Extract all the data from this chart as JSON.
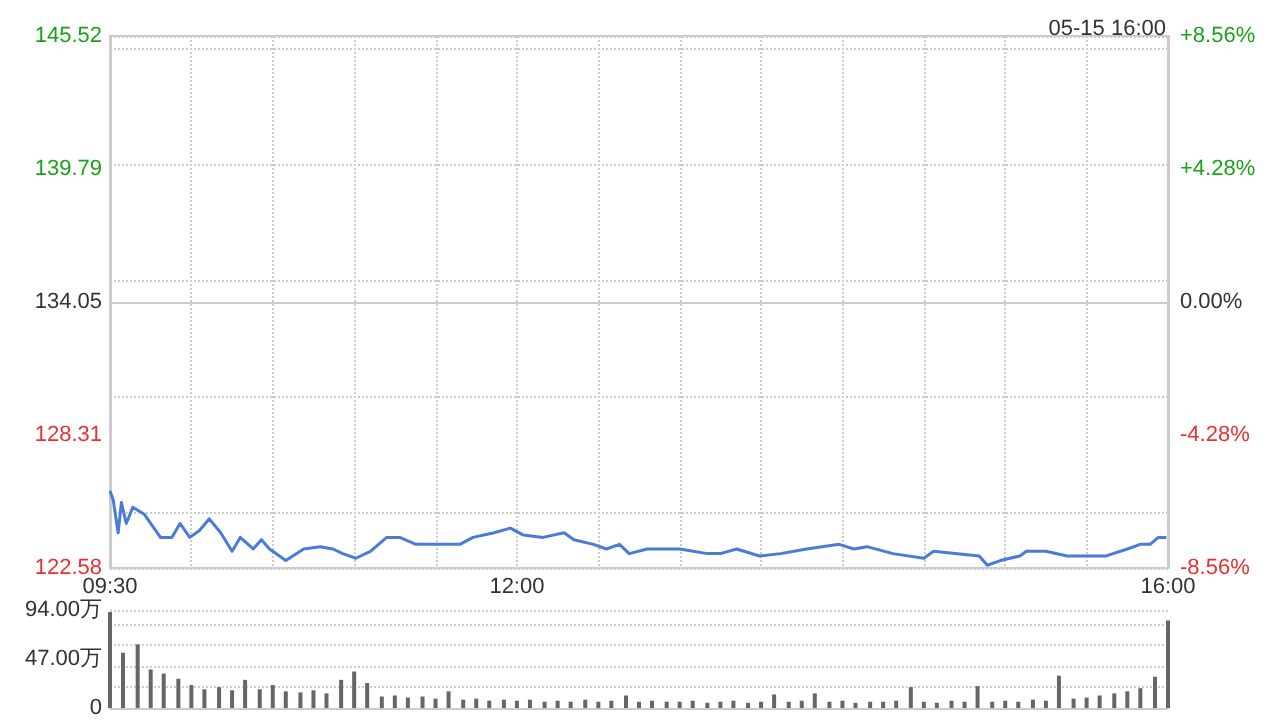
{
  "chart_data": [
    {
      "type": "line",
      "subtitle": "05-15 16:00",
      "x": [
        9.5,
        9.52,
        9.55,
        9.57,
        9.6,
        9.64,
        9.71,
        9.81,
        9.88,
        9.93,
        9.99,
        10.05,
        10.11,
        10.18,
        10.25,
        10.3,
        10.38,
        10.43,
        10.48,
        10.58,
        10.69,
        10.79,
        10.87,
        10.93,
        11.01,
        11.1,
        11.2,
        11.28,
        11.38,
        11.51,
        11.65,
        11.73,
        11.86,
        11.96,
        12.04,
        12.16,
        12.29,
        12.35,
        12.47,
        12.55,
        12.63,
        12.69,
        12.8,
        13.0,
        13.17,
        13.25,
        13.35,
        13.49,
        13.62,
        13.78,
        13.98,
        14.07,
        14.15,
        14.31,
        14.5,
        14.56,
        14.84,
        14.89,
        14.97,
        15.09,
        15.13,
        15.25,
        15.38,
        15.62,
        15.75,
        15.83,
        15.89,
        15.94,
        15.99
      ],
      "series": [
        {
          "color": "#4a7bd6",
          "values": [
            125.9,
            125.5,
            124.1,
            125.4,
            124.5,
            125.2,
            124.9,
            123.9,
            123.9,
            124.5,
            123.9,
            124.2,
            124.7,
            124.1,
            123.3,
            123.9,
            123.4,
            123.8,
            123.4,
            122.9,
            123.4,
            123.5,
            123.4,
            123.2,
            123.0,
            123.3,
            123.9,
            123.9,
            123.6,
            123.6,
            123.6,
            123.9,
            124.1,
            124.3,
            124.0,
            123.9,
            124.1,
            123.8,
            123.6,
            123.4,
            123.6,
            123.2,
            123.4,
            123.4,
            123.2,
            123.2,
            123.4,
            123.1,
            123.2,
            123.4,
            123.6,
            123.4,
            123.5,
            123.2,
            123.0,
            123.3,
            123.1,
            122.7,
            122.9,
            123.1,
            123.3,
            123.3,
            123.1,
            123.1,
            123.4,
            123.6,
            123.6,
            123.9,
            123.9
          ]
        }
      ],
      "xlim": [
        9.5,
        16
      ],
      "xticks": [
        {
          "value": 9.5,
          "label": "09:30"
        },
        {
          "value": 10,
          "label": null
        },
        {
          "value": 10.5,
          "label": null
        },
        {
          "value": 11,
          "label": null
        },
        {
          "value": 11.5,
          "label": null
        },
        {
          "value": 12,
          "label": "12:00"
        },
        {
          "value": 12.5,
          "label": null
        },
        {
          "value": 13,
          "label": null
        },
        {
          "value": 13.5,
          "label": null
        },
        {
          "value": 14,
          "label": null
        },
        {
          "value": 14.5,
          "label": null
        },
        {
          "value": 15,
          "label": null
        },
        {
          "value": 15.5,
          "label": null
        },
        {
          "value": 16,
          "label": "16:00"
        }
      ],
      "ylim": [
        122.58,
        145.52
      ],
      "yticks": [
        122.58,
        128.31,
        134.05,
        139.79,
        145.52
      ],
      "y2lim": [
        -8.56,
        8.56
      ],
      "y2ticks": [
        {
          "value": -8.56,
          "label": "-8.56%"
        },
        {
          "value": -4.28,
          "label": "-4.28%"
        },
        {
          "value": 0,
          "label": "0.00%"
        },
        {
          "value": 4.28,
          "label": "+4.28%"
        },
        {
          "value": 8.56,
          "label": "+8.56%"
        }
      ],
      "grid": true
    },
    {
      "type": "bar",
      "x": [
        9.5,
        9.58,
        9.67,
        9.75,
        9.83,
        9.92,
        10.0,
        10.08,
        10.17,
        10.25,
        10.33,
        10.42,
        10.5,
        10.58,
        10.67,
        10.75,
        10.83,
        10.92,
        11.0,
        11.08,
        11.17,
        11.25,
        11.33,
        11.42,
        11.5,
        11.58,
        11.67,
        11.75,
        11.83,
        11.92,
        12.0,
        12.08,
        12.17,
        12.25,
        12.33,
        12.42,
        12.5,
        12.58,
        12.67,
        12.75,
        12.83,
        12.92,
        13.0,
        13.08,
        13.17,
        13.25,
        13.33,
        13.42,
        13.5,
        13.58,
        13.67,
        13.75,
        13.83,
        13.92,
        14.0,
        14.08,
        14.17,
        14.25,
        14.33,
        14.42,
        14.5,
        14.58,
        14.67,
        14.75,
        14.83,
        14.92,
        15.0,
        15.08,
        15.17,
        15.25,
        15.33,
        15.42,
        15.5,
        15.58,
        15.67,
        15.75,
        15.83,
        15.92,
        16.0
      ],
      "series": [
        {
          "color": "#666666",
          "values": [
            92,
            53,
            61,
            37,
            33,
            28,
            22,
            18,
            20,
            17,
            27,
            18,
            22,
            16,
            15,
            17,
            14,
            27,
            35,
            24,
            11,
            12,
            10,
            11,
            9,
            16,
            8,
            9,
            7,
            8,
            7,
            8,
            6,
            7,
            6,
            8,
            6,
            7,
            12,
            6,
            7,
            6,
            6,
            7,
            5,
            6,
            7,
            5,
            6,
            13,
            6,
            7,
            14,
            6,
            7,
            5,
            6,
            6,
            7,
            20,
            6,
            5,
            7,
            6,
            21,
            6,
            7,
            6,
            8,
            7,
            31,
            9,
            10,
            12,
            14,
            16,
            19,
            30,
            84
          ]
        }
      ],
      "xlim": [
        9.5,
        16
      ],
      "ylim": [
        0,
        94
      ],
      "yticks": [
        0,
        {
          "value": 47,
          "label": "47.00万"
        },
        {
          "value": 94,
          "label": "94.00万"
        }
      ],
      "grid": "y",
      "tick_labels": "y"
    }
  ]
}
